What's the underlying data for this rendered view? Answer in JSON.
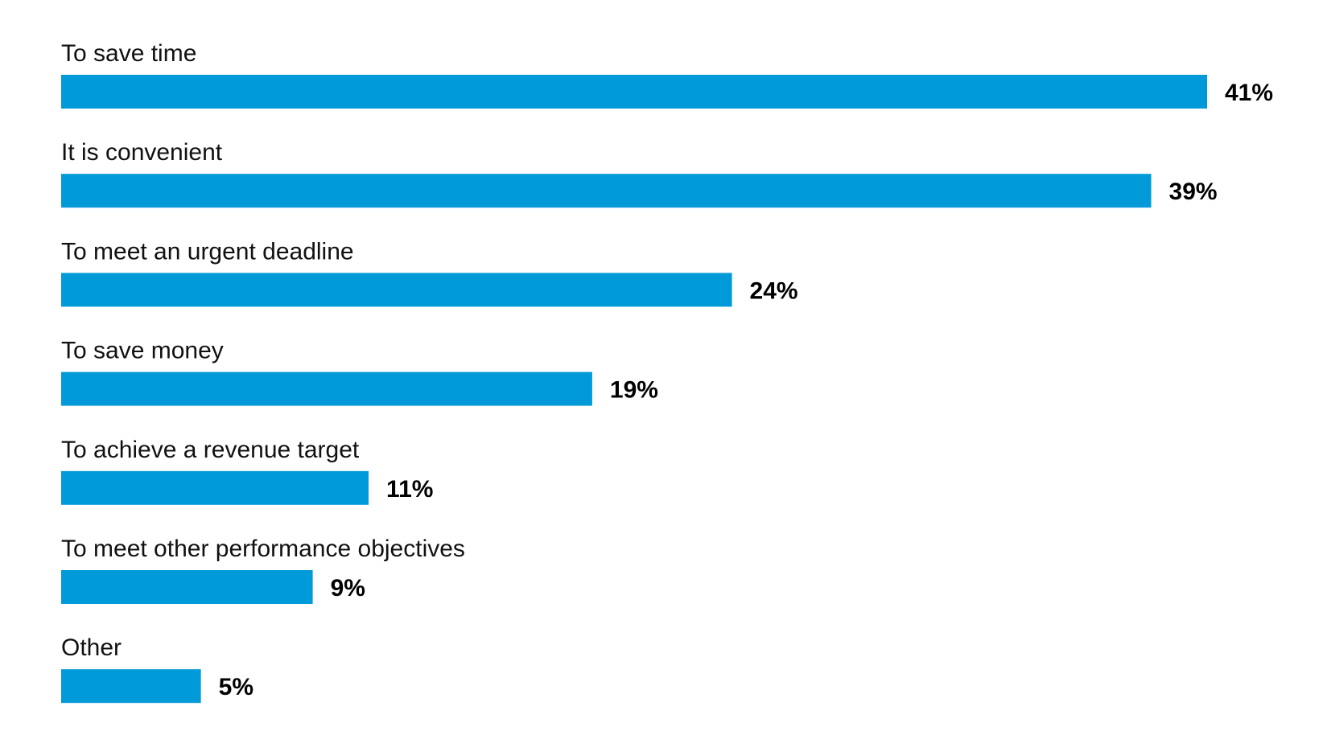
{
  "chart_data": {
    "type": "bar",
    "orientation": "horizontal",
    "categories": [
      "To save time",
      "It is convenient",
      "To meet an urgent deadline",
      "To save money",
      "To achieve a revenue target",
      "To meet other performance objectives",
      "Other"
    ],
    "values": [
      41,
      39,
      24,
      19,
      11,
      9,
      5
    ],
    "value_labels": [
      "41%",
      "39%",
      "24%",
      "19%",
      "11%",
      "9%",
      "5%"
    ],
    "unit": "%",
    "xlim": [
      0,
      41
    ],
    "grid": false,
    "legend": "none",
    "colors": {
      "bar": "#009ad9",
      "label_text": "#111111",
      "value_text": "#000000",
      "background": "#ffffff"
    }
  }
}
